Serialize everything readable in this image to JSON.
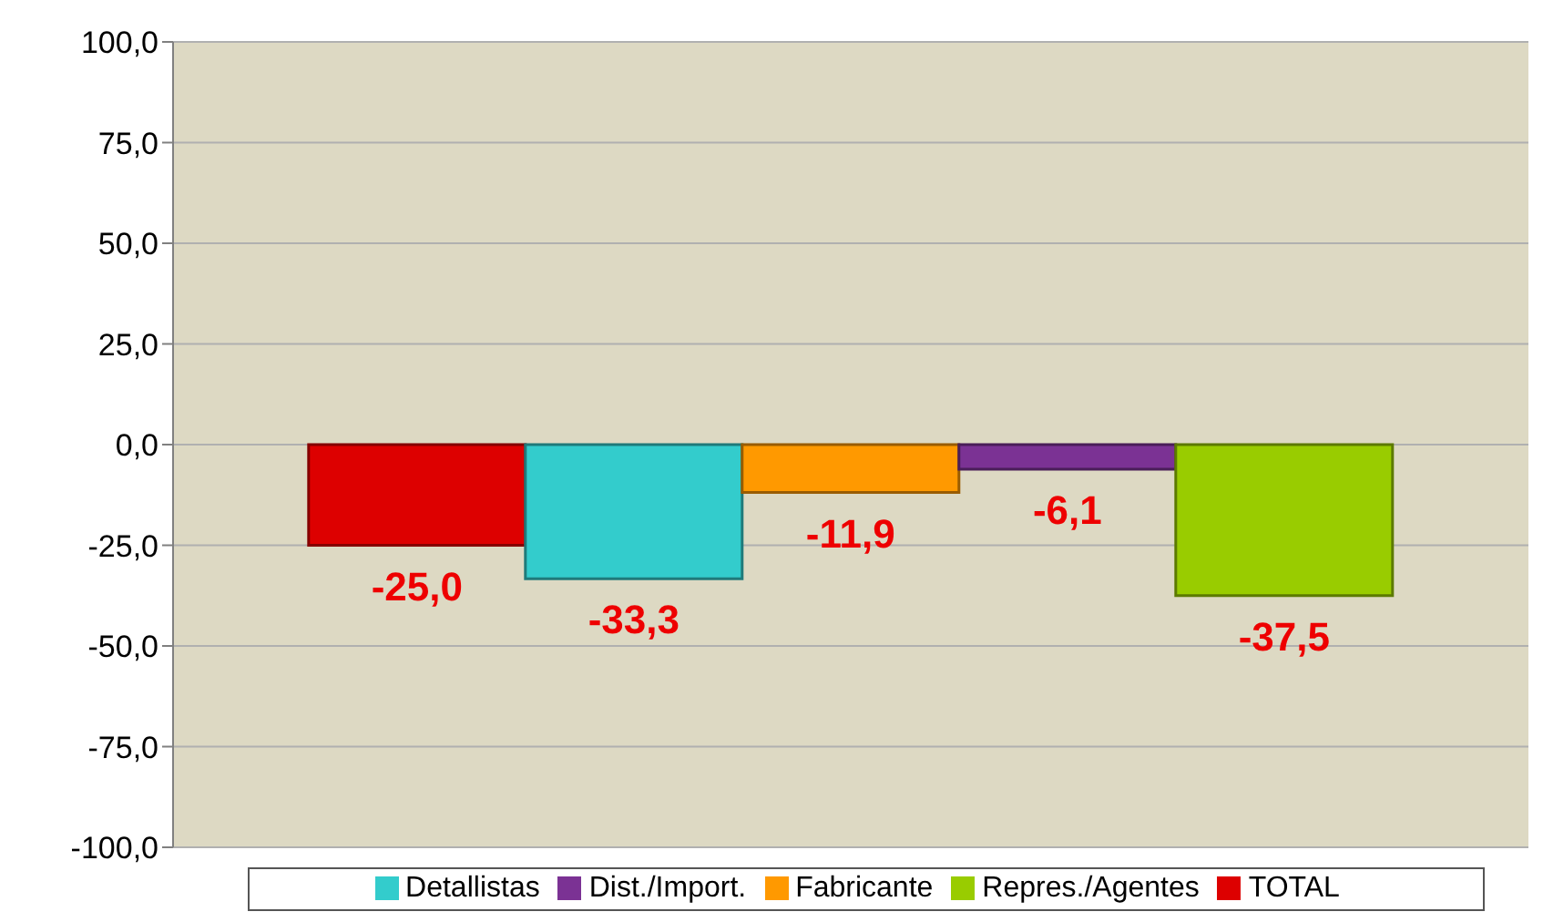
{
  "chart_data": {
    "type": "bar",
    "categories": [
      null
    ],
    "series": [
      {
        "name": "TOTAL",
        "color": "#dd0000",
        "values": [
          -25.0
        ],
        "value_labels": [
          "-25,0"
        ]
      },
      {
        "name": "Detallistas",
        "color": "#33cccc",
        "values": [
          -33.3
        ],
        "value_labels": [
          "-33,3"
        ]
      },
      {
        "name": "Fabricante",
        "color": "#ff9900",
        "values": [
          -11.9
        ],
        "value_labels": [
          "-11,9"
        ]
      },
      {
        "name": "Dist./Import.",
        "color": "#7b3294",
        "values": [
          -6.1
        ],
        "value_labels": [
          "-6,1"
        ]
      },
      {
        "name": "Repres./Agentes",
        "color": "#99cc00",
        "values": [
          -37.5
        ],
        "value_labels": [
          "-37,5"
        ]
      }
    ],
    "ylim": [
      -100,
      100
    ],
    "yticks": [
      {
        "value": 100,
        "label": "100,0"
      },
      {
        "value": 75,
        "label": "75,0"
      },
      {
        "value": 50,
        "label": "50,0"
      },
      {
        "value": 25,
        "label": "25,0"
      },
      {
        "value": 0,
        "label": "0,0"
      },
      {
        "value": -25,
        "label": "-25,0"
      },
      {
        "value": -50,
        "label": "-50,0"
      },
      {
        "value": -75,
        "label": "-75,0"
      },
      {
        "value": -100,
        "label": "-100,0"
      }
    ],
    "grid": "y",
    "legend": "bottom"
  }
}
